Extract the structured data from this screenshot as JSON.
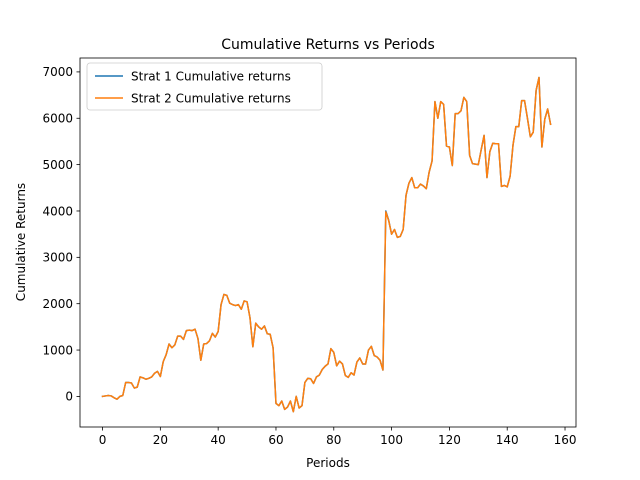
{
  "chart_data": {
    "type": "line",
    "title": "Cumulative Returns vs Periods",
    "xlabel": "Periods",
    "ylabel": "Cumulative Returns",
    "xlim": [
      -7.8,
      163.8
    ],
    "ylim": [
      -660,
      7300
    ],
    "xticks": [
      0,
      20,
      40,
      60,
      80,
      100,
      120,
      140,
      160
    ],
    "yticks": [
      0,
      1000,
      2000,
      3000,
      4000,
      5000,
      6000,
      7000
    ],
    "grid": false,
    "legend_position": "top-left",
    "colors": {
      "series1": "#1f77b4",
      "series2": "#ff7f0e"
    },
    "series": [
      {
        "name": "Strat 1 Cumulative returns",
        "values": [
          0,
          10,
          20,
          10,
          -30,
          -60,
          0,
          20,
          300,
          300,
          290,
          180,
          200,
          420,
          400,
          370,
          390,
          420,
          500,
          540,
          430,
          750,
          900,
          1130,
          1050,
          1110,
          1300,
          1300,
          1230,
          1420,
          1430,
          1420,
          1450,
          1250,
          780,
          1130,
          1140,
          1200,
          1360,
          1280,
          1400,
          1980,
          2200,
          2180,
          2010,
          1980,
          1960,
          1980,
          1880,
          2060,
          2040,
          1700,
          1070,
          1580,
          1500,
          1450,
          1520,
          1350,
          1340,
          1050,
          -150,
          -200,
          -100,
          -280,
          -230,
          -100,
          -330,
          0,
          -250,
          -200,
          300,
          390,
          380,
          280,
          420,
          460,
          580,
          650,
          700,
          1030,
          950,
          660,
          760,
          700,
          450,
          410,
          510,
          460,
          740,
          830,
          700,
          700,
          1000,
          1080,
          880,
          850,
          780,
          570,
          4000,
          3800,
          3500,
          3600,
          3430,
          3450,
          3600,
          4340,
          4600,
          4720,
          4500,
          4500,
          4580,
          4540,
          4480,
          4840,
          5080,
          6360,
          6000,
          6360,
          6300,
          5400,
          5380,
          4980,
          6100,
          6100,
          6160,
          6450,
          6360,
          5200,
          5020,
          5010,
          5000,
          5320,
          5630,
          4720,
          5280,
          5460,
          5450,
          5450,
          4530,
          4550,
          4520,
          4750,
          5420,
          5820,
          5820,
          6380,
          6380,
          6000,
          5600,
          5700,
          6600,
          6880,
          5380,
          5980,
          6200,
          5870
        ]
      },
      {
        "name": "Strat 2 Cumulative returns",
        "values": [
          0,
          10,
          20,
          10,
          -30,
          -60,
          0,
          20,
          300,
          300,
          290,
          180,
          200,
          420,
          400,
          370,
          390,
          420,
          500,
          540,
          430,
          750,
          900,
          1130,
          1050,
          1110,
          1300,
          1300,
          1230,
          1420,
          1430,
          1420,
          1450,
          1250,
          780,
          1130,
          1140,
          1200,
          1360,
          1280,
          1400,
          1980,
          2200,
          2180,
          2010,
          1980,
          1960,
          1980,
          1880,
          2060,
          2040,
          1700,
          1070,
          1580,
          1500,
          1450,
          1520,
          1350,
          1340,
          1050,
          -150,
          -200,
          -100,
          -280,
          -230,
          -100,
          -330,
          0,
          -250,
          -200,
          300,
          390,
          380,
          280,
          420,
          460,
          580,
          650,
          700,
          1030,
          950,
          660,
          760,
          700,
          450,
          410,
          510,
          460,
          740,
          830,
          700,
          700,
          1000,
          1080,
          880,
          850,
          780,
          570,
          3980,
          3790,
          3500,
          3600,
          3430,
          3450,
          3600,
          4340,
          4600,
          4720,
          4500,
          4500,
          4580,
          4540,
          4480,
          4840,
          5080,
          6360,
          6000,
          6360,
          6300,
          5400,
          5380,
          4980,
          6100,
          6100,
          6160,
          6450,
          6360,
          5200,
          5020,
          5010,
          5000,
          5320,
          5630,
          4720,
          5280,
          5460,
          5450,
          5450,
          4530,
          4550,
          4520,
          4750,
          5420,
          5820,
          5820,
          6380,
          6380,
          6000,
          5600,
          5700,
          6600,
          6880,
          5380,
          5980,
          6200,
          5870
        ]
      }
    ]
  }
}
